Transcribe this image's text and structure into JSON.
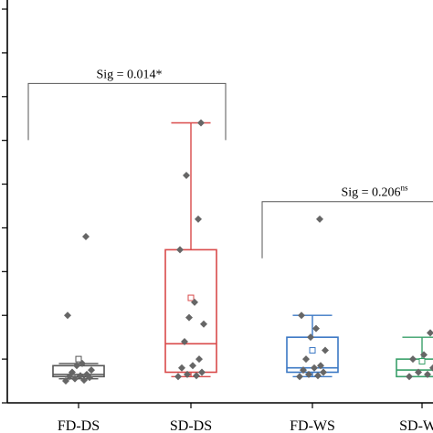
{
  "chart_data": {
    "type": "box",
    "categories": [
      "FD-DS",
      "SD-DS",
      "FD-WS",
      "SD-WS"
    ],
    "ylim": [
      0,
      9
    ],
    "y_ticks": [
      0,
      1,
      2,
      3,
      4,
      5,
      6,
      7,
      8,
      9
    ],
    "y_tick_labels_visible": false,
    "grid": false,
    "legend": "none",
    "boxes": [
      {
        "category": "FD-DS",
        "color": "#555555",
        "min": 0.55,
        "q1": 0.6,
        "median": 0.65,
        "q3": 0.85,
        "max": 0.9,
        "mean": 1.0,
        "points": [
          0.5,
          0.52,
          0.55,
          0.58,
          0.6,
          0.62,
          0.65,
          0.7,
          0.75,
          0.85,
          0.9,
          2.0,
          3.8
        ]
      },
      {
        "category": "SD-DS",
        "color": "#d94a4a",
        "min": 0.6,
        "q1": 0.7,
        "median": 1.35,
        "q3": 3.5,
        "max": 6.4,
        "mean": 2.4,
        "points": [
          0.6,
          0.62,
          0.65,
          0.7,
          0.8,
          0.85,
          1.0,
          1.4,
          1.8,
          1.95,
          2.3,
          3.5,
          4.2,
          5.2,
          6.4
        ]
      },
      {
        "category": "FD-WS",
        "color": "#3b78c4",
        "min": 0.6,
        "q1": 0.7,
        "median": 0.8,
        "q3": 1.5,
        "max": 2.0,
        "mean": 1.2,
        "points": [
          0.6,
          0.62,
          0.65,
          0.7,
          0.75,
          0.8,
          0.85,
          1.0,
          1.2,
          1.5,
          1.7,
          2.0,
          4.2
        ]
      },
      {
        "category": "SD-WS",
        "color": "#3aa06a",
        "min": 0.6,
        "q1": 0.6,
        "median": 0.75,
        "q3": 1.0,
        "max": 1.5,
        "mean": 0.95,
        "points": [
          0.6,
          0.65,
          0.7,
          0.8,
          1.0,
          1.1,
          1.6
        ]
      }
    ],
    "annotations": [
      {
        "text": "Sig = 0.014*",
        "sup": "",
        "between": [
          "FD-DS",
          "SD-DS"
        ],
        "y": 7.3
      },
      {
        "text": "Sig = 0.206",
        "sup": "ns",
        "between": [
          "FD-WS",
          "SD-WS"
        ],
        "y": 4.6
      }
    ]
  },
  "colors": {
    "axis": "#000000",
    "point": "#666666"
  }
}
